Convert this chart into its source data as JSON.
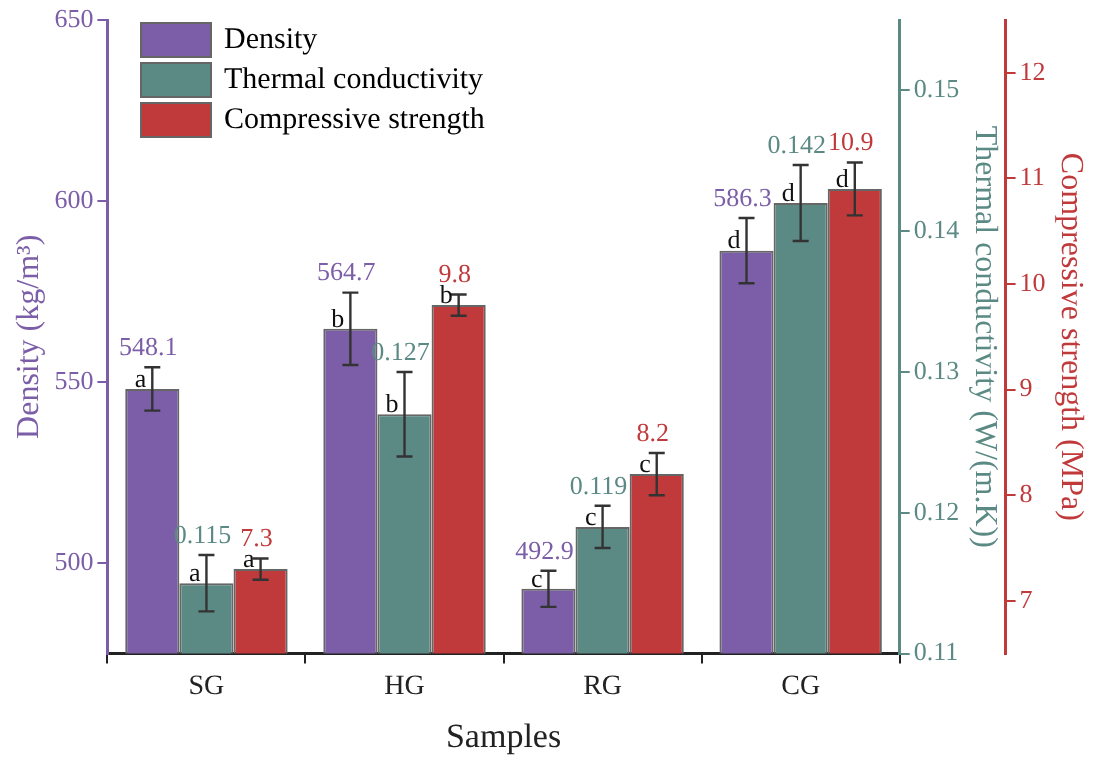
{
  "chart_data": {
    "type": "bar",
    "categories": [
      "SG",
      "HG",
      "RG",
      "CG"
    ],
    "xlabel": "Samples",
    "ylabel": "Density (kg/m³)",
    "y2label": "Thermal conductivity (W/(m.K))",
    "y3label": "Compressive strength (MPa)",
    "series": [
      {
        "name": "Density",
        "color": "#7b5ea7",
        "axis": "y",
        "values": [
          548.1,
          564.7,
          492.9,
          586.3
        ],
        "errors": [
          6,
          10,
          5,
          9
        ]
      },
      {
        "name": "Thermal conductivity",
        "color": "#5b8a85",
        "axis": "y2",
        "values": [
          0.115,
          0.127,
          0.119,
          0.142
        ],
        "errors": [
          0.002,
          0.003,
          0.0015,
          0.0027
        ]
      },
      {
        "name": "Compressive strength",
        "color": "#c0393b",
        "axis": "y3",
        "values": [
          7.3,
          9.8,
          8.2,
          10.9
        ],
        "errors": [
          0.1,
          0.1,
          0.2,
          0.25
        ]
      }
    ],
    "ylim": [
      475,
      650
    ],
    "yticks": [
      500,
      550,
      600,
      650
    ],
    "y2lim": [
      0.11,
      0.155
    ],
    "y2ticks": [
      0.11,
      0.12,
      0.13,
      0.14,
      0.15
    ],
    "y3lim": [
      6.5,
      12.5
    ],
    "y3ticks": [
      7,
      8,
      9,
      10,
      11,
      12
    ],
    "data_labels": true,
    "legend": "top left",
    "grid": false,
    "annotations": [
      "a",
      "a",
      "a",
      "b",
      "b",
      "b",
      "c",
      "c",
      "c",
      "d",
      "d",
      "d"
    ]
  }
}
